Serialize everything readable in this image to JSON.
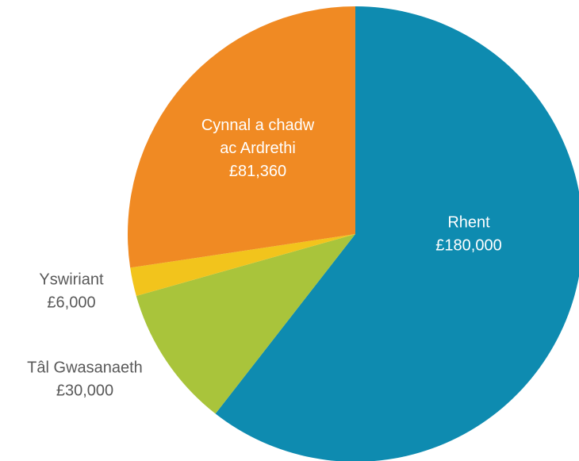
{
  "chart_data": {
    "type": "pie",
    "title": "",
    "start_angle_deg": 0,
    "direction": "clockwise",
    "slices": [
      {
        "label": "Rhent",
        "value_label": "£180,000",
        "value": 180000,
        "color": "#0e8bb0",
        "label_color": "#ffffff"
      },
      {
        "label": "Tâl Gwasanaeth",
        "value_label": "£30,000",
        "value": 30000,
        "color": "#a9c43b",
        "label_color": "#595959"
      },
      {
        "label": "Yswiriant",
        "value_label": "£6,000",
        "value": 6000,
        "color": "#f2c41c",
        "label_color": "#595959"
      },
      {
        "label": "Cynnal a chadw ac Ardrethi",
        "label_lines": [
          "Cynnal a chadw",
          "ac Ardrethi"
        ],
        "value_label": "£81,360",
        "value": 81360,
        "color": "#f08a23",
        "label_color": "#ffffff"
      }
    ]
  }
}
